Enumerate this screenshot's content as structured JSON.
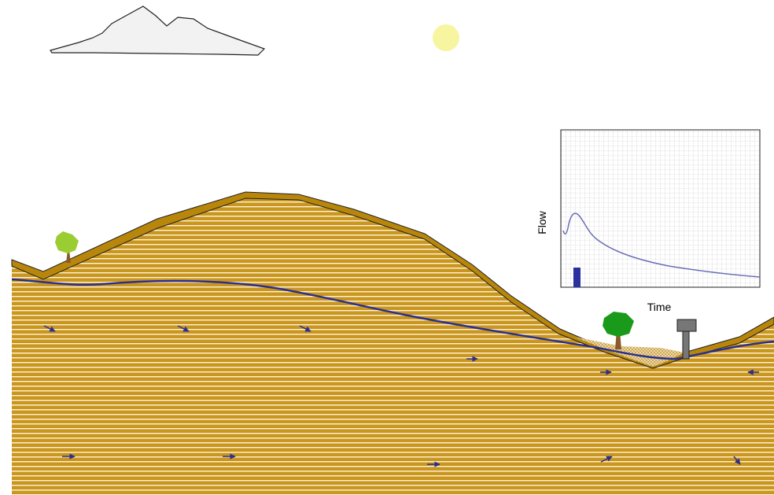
{
  "graph": {
    "x_label": "Time",
    "y_label": "Flow"
  }
}
